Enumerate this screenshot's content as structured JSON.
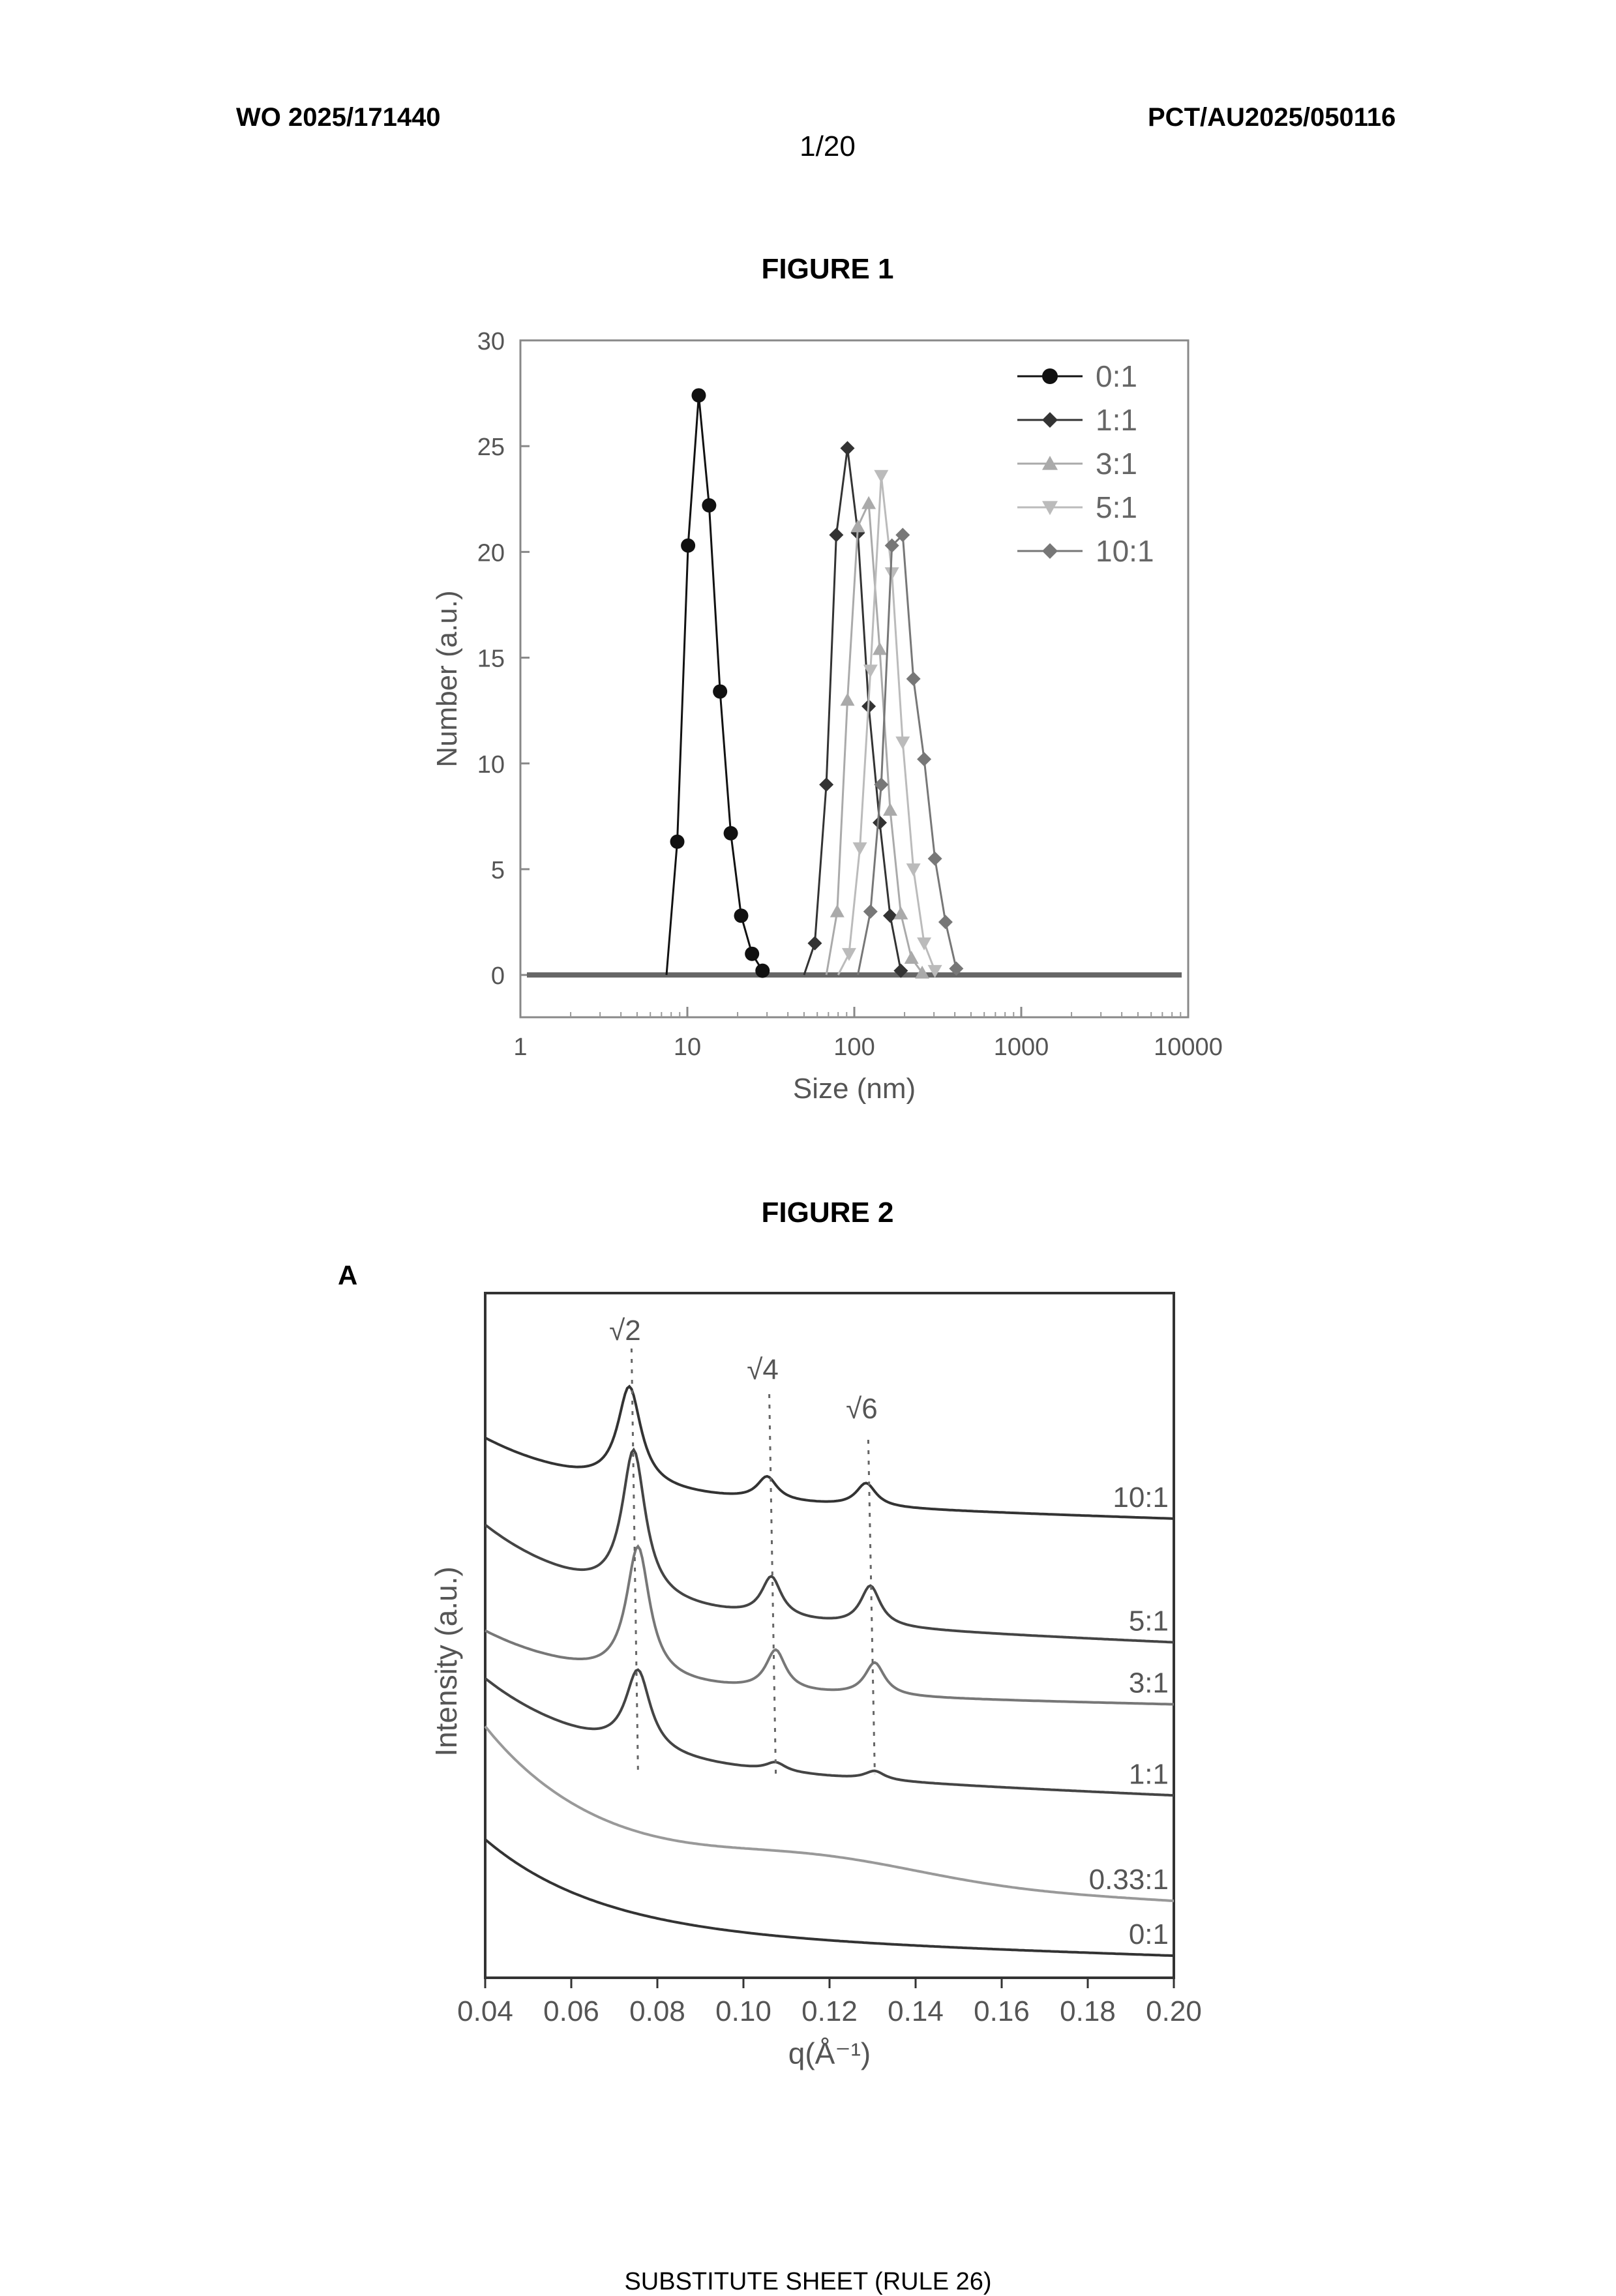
{
  "header": {
    "left": "WO 2025/171440",
    "right": "PCT/AU2025/050116",
    "page": "1/20"
  },
  "footer": "SUBSTITUTE SHEET (RULE 26)",
  "figures": {
    "fig1_title": "FIGURE 1",
    "fig2_title": "FIGURE 2",
    "fig2_panel": "A"
  },
  "chart_data": [
    {
      "type": "line",
      "xlabel": "Size (nm)",
      "ylabel": "Number (a.u.)",
      "x_scale": "log",
      "xlim": [
        1,
        10000
      ],
      "ylim": [
        -2,
        30
      ],
      "x_ticks": [
        "1",
        "10",
        "100",
        "1000",
        "10000"
      ],
      "y_ticks": [
        "0",
        "5",
        "10",
        "15",
        "20",
        "25",
        "30"
      ],
      "legend_position": "top-right",
      "series": [
        {
          "name": "0:1",
          "color": "#111111",
          "marker": "circle",
          "x": [
            7.5,
            8.7,
            10.1,
            11.7,
            13.5,
            15.7,
            18.2,
            21.0,
            24.4,
            28.2
          ],
          "y": [
            0,
            6.3,
            20.3,
            27.4,
            22.2,
            13.4,
            6.7,
            2.8,
            1.0,
            0.2
          ]
        },
        {
          "name": "1:1",
          "color": "#333333",
          "marker": "diamond",
          "x": [
            50,
            58,
            68,
            78,
            91,
            105,
            122,
            142,
            164,
            190
          ],
          "y": [
            0,
            1.5,
            9.0,
            20.8,
            24.9,
            20.9,
            12.7,
            7.2,
            2.8,
            0.2
          ]
        },
        {
          "name": "3:1",
          "color": "#aaaaaa",
          "marker": "triangle-up",
          "x": [
            68,
            79,
            91,
            105,
            122,
            142,
            164,
            190,
            220,
            255
          ],
          "y": [
            0,
            3.0,
            13.0,
            21.2,
            22.3,
            15.4,
            7.8,
            2.9,
            0.8,
            0.1
          ]
        },
        {
          "name": "5:1",
          "color": "#bbbbbb",
          "marker": "triangle-down",
          "x": [
            80,
            93,
            108,
            125,
            145,
            168,
            195,
            226,
            262,
            304
          ],
          "y": [
            0,
            1.0,
            6.0,
            14.4,
            23.6,
            19.0,
            11.0,
            5.0,
            1.5,
            0.2
          ]
        },
        {
          "name": "10:1",
          "color": "#777777",
          "marker": "diamond",
          "x": [
            105,
            125,
            145,
            168,
            195,
            226,
            262,
            304,
            352,
            408
          ],
          "y": [
            0,
            3.0,
            9.0,
            20.3,
            20.8,
            14.0,
            10.2,
            5.5,
            2.5,
            0.3
          ]
        }
      ]
    },
    {
      "type": "line",
      "xlabel": "q(Å⁻¹)",
      "ylabel": "Intensity (a.u.)",
      "xlim": [
        0.04,
        0.2
      ],
      "x_ticks": [
        "0.04",
        "0.06",
        "0.08",
        "0.10",
        "0.12",
        "0.14",
        "0.16",
        "0.18",
        "0.20"
      ],
      "peak_labels": [
        {
          "label": "√2",
          "q": 0.074
        },
        {
          "label": "√4",
          "q": 0.106
        },
        {
          "label": "√6",
          "q": 0.129
        }
      ],
      "series": [
        {
          "name": "10:1",
          "offset": 6.0,
          "base": [
            0.8,
            -0.3
          ],
          "peaks": [
            {
              "q": 0.0735,
              "h": 1.35,
              "w": 0.0033
            },
            {
              "q": 0.1055,
              "h": 0.32,
              "w": 0.0028
            },
            {
              "q": 0.1285,
              "h": 0.32,
              "w": 0.0028
            }
          ]
        },
        {
          "name": "5:1",
          "offset": 4.4,
          "base": [
            1.2,
            -0.4
          ],
          "peaks": [
            {
              "q": 0.0745,
              "h": 2.0,
              "w": 0.0033
            },
            {
              "q": 0.1065,
              "h": 0.55,
              "w": 0.0028
            },
            {
              "q": 0.1295,
              "h": 0.55,
              "w": 0.0028
            }
          ]
        },
        {
          "name": "3:1",
          "offset": 3.35,
          "base": [
            0.8,
            -0.2
          ],
          "peaks": [
            {
              "q": 0.0755,
              "h": 1.8,
              "w": 0.0033
            },
            {
              "q": 0.1075,
              "h": 0.55,
              "w": 0.0028
            },
            {
              "q": 0.1305,
              "h": 0.45,
              "w": 0.0028
            }
          ]
        },
        {
          "name": "1:1",
          "offset": 2.3,
          "base": [
            1.2,
            -0.4
          ],
          "peaks": [
            {
              "q": 0.0755,
              "h": 1.1,
              "w": 0.0035
            },
            {
              "q": 0.1075,
              "h": 0.12,
              "w": 0.0028
            },
            {
              "q": 0.1305,
              "h": 0.12,
              "w": 0.0028
            }
          ]
        },
        {
          "name": "0.33:1",
          "offset": 0.95,
          "base": [
            1.9,
            -0.5
          ],
          "hump": {
            "q": 0.118,
            "h": 0.28,
            "w": 0.035
          }
        },
        {
          "name": "0:1",
          "offset": 0.0,
          "base": [
            1.3,
            -0.3
          ]
        }
      ]
    }
  ]
}
